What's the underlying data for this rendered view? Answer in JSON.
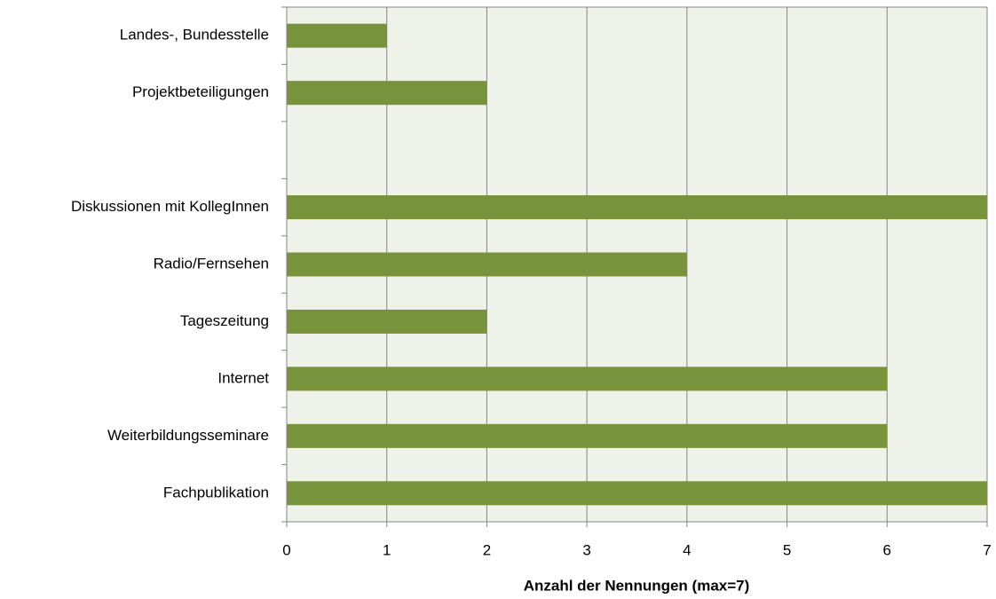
{
  "chart_data": {
    "type": "barh",
    "x_label": "Anzahl der Nennungen (max=7)",
    "categories": [
      "Landes-, Bundesstelle",
      "Projektbeteiligungen",
      null,
      "Diskussionen mit KollegInnen",
      "Radio/Fernsehen",
      "Tageszeitung",
      "Internet",
      "Weiterbildungsseminare",
      "Fachpublikation"
    ],
    "values": [
      1,
      2,
      null,
      7,
      4,
      2,
      6,
      6,
      7
    ],
    "color": "#77933c",
    "xlim": [
      0,
      7
    ],
    "xticks": [
      0,
      1,
      2,
      3,
      4,
      5,
      6,
      7
    ],
    "grid": true
  }
}
